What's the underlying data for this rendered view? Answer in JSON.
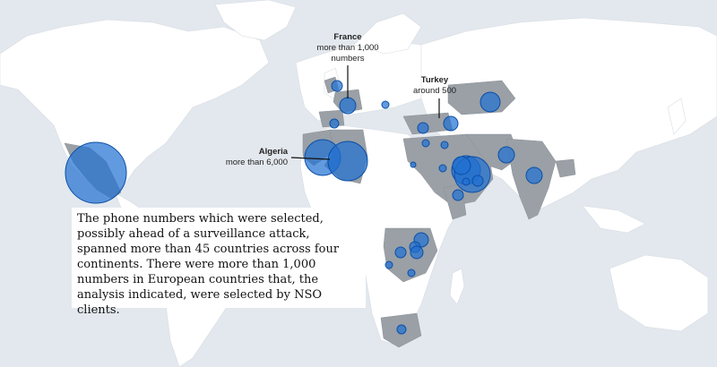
{
  "map": {
    "colors": {
      "ocean": "#e3e8ee",
      "land": "#ffffff",
      "highlight_land": "#9aa0a6",
      "bubble_fill": "#1f6fd1",
      "bubble_stroke": "#0b4fa8"
    },
    "annotations": [
      {
        "id": "france",
        "country": "France",
        "value": "more than 1,000 numbers"
      },
      {
        "id": "turkey",
        "country": "Turkey",
        "value": "around 500"
      },
      {
        "id": "algeria",
        "country": "Algeria",
        "value": "more than 6,000"
      }
    ],
    "caption": "The phone numbers which were selected, possibly ahead of a surveillance attack, spanned more than 45 countries across four continents. There were more than 1,000 numbers in European countries that, the analysis indicated, were selected by NSO clients."
  }
}
